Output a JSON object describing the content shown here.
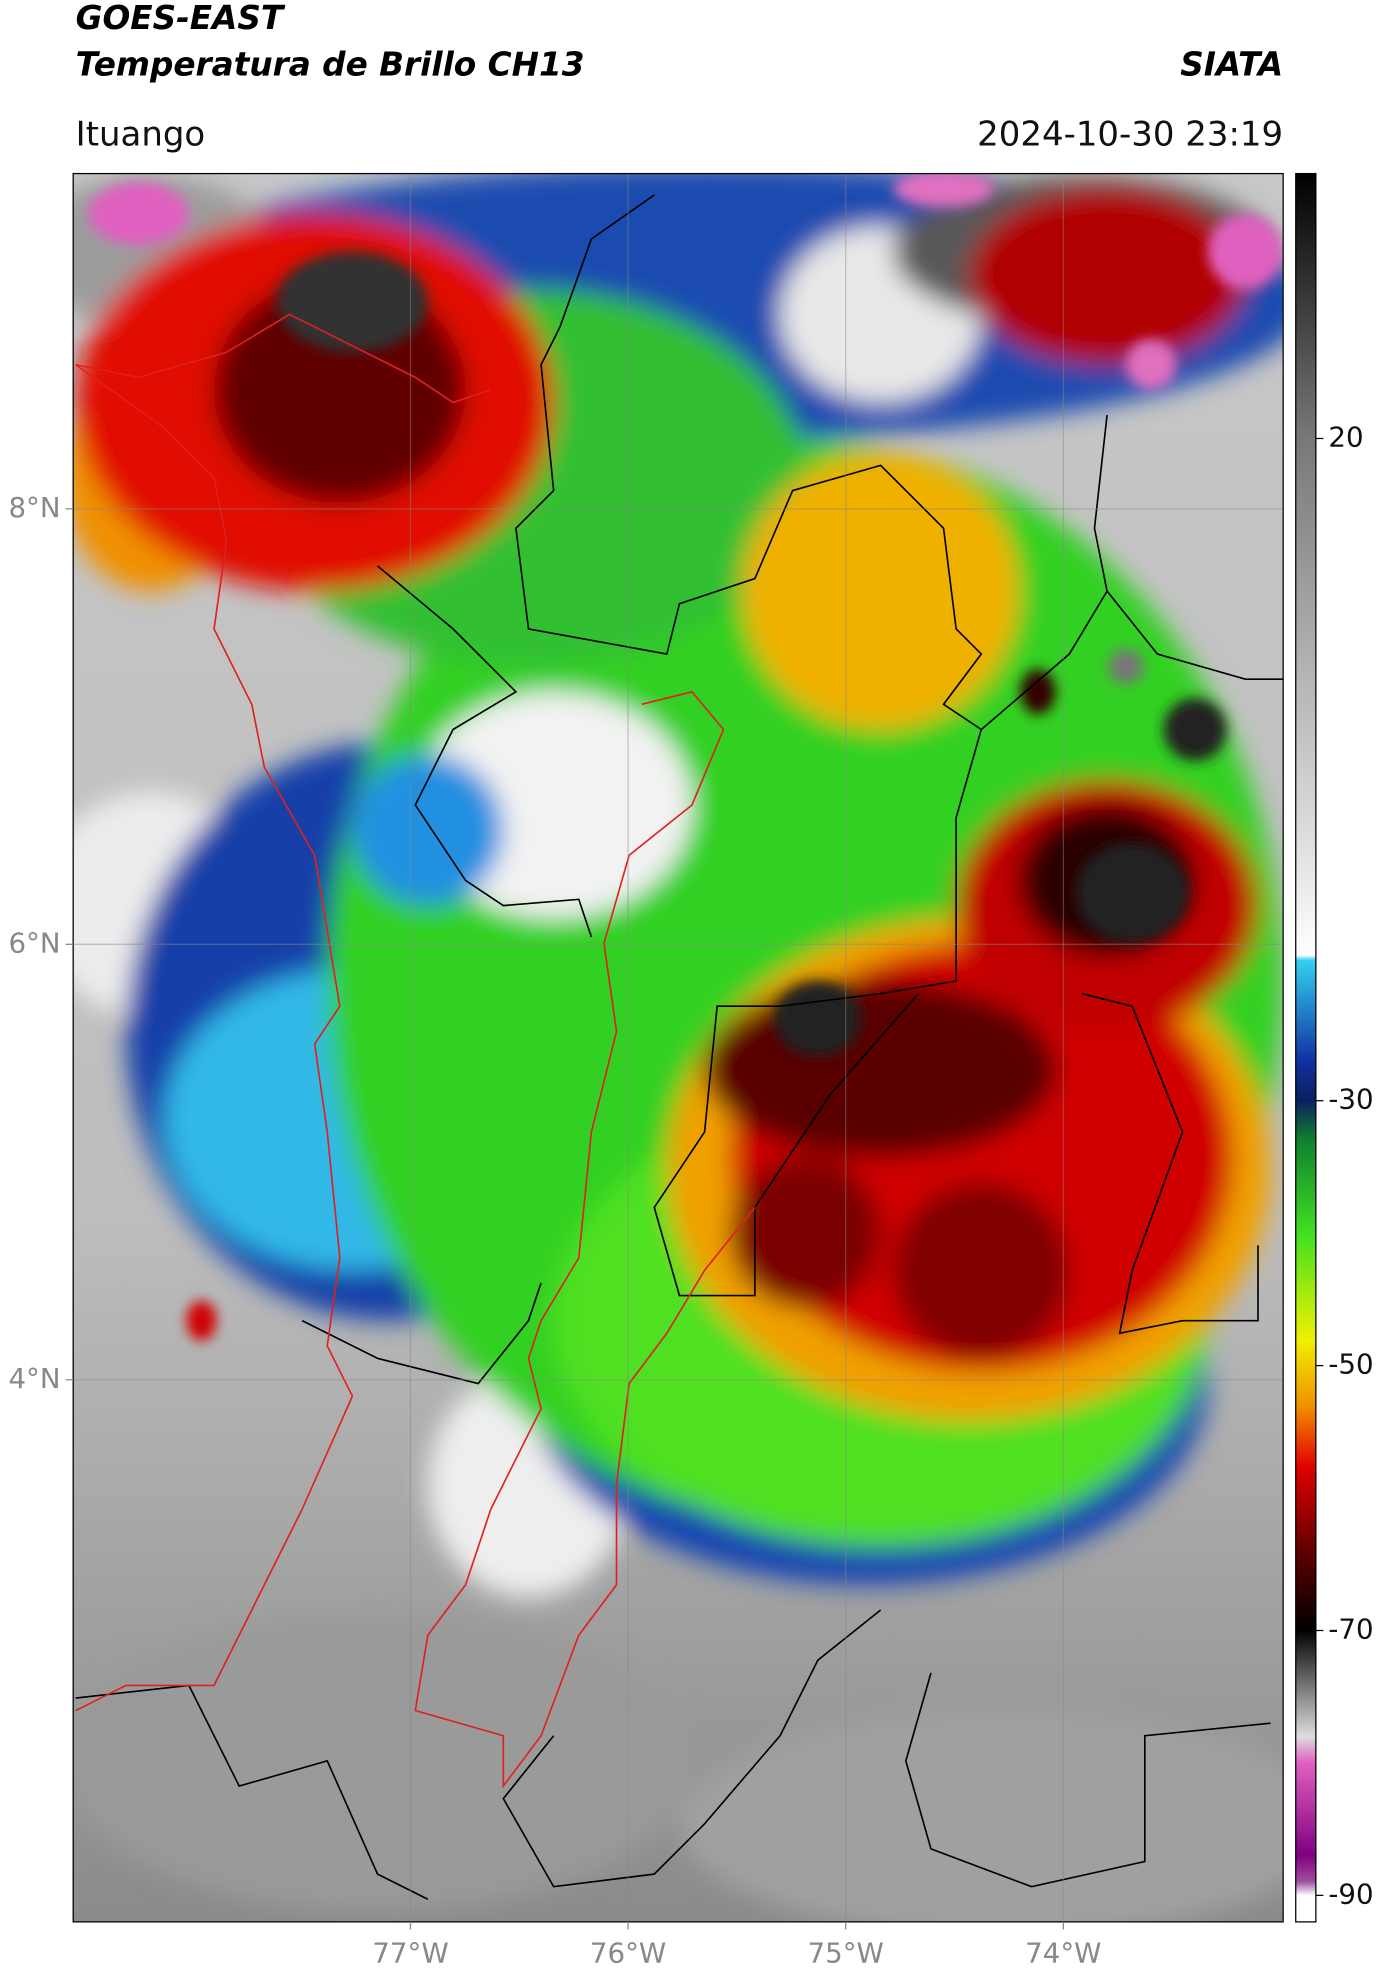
{
  "header": {
    "title": "GOES-EAST",
    "subtitle": "Temperatura de Brillo CH13",
    "agency": "SIATA",
    "location": "Ituango",
    "timestamp": "2024-10-30 23:19"
  },
  "map": {
    "xlim": [
      -78.55,
      -72.99
    ],
    "ylim": [
      1.51,
      9.54
    ],
    "xticks": [
      {
        "value": -77,
        "label": "77°W"
      },
      {
        "value": -76,
        "label": "76°W"
      },
      {
        "value": -75,
        "label": "75°W"
      },
      {
        "value": -74,
        "label": "74°W"
      }
    ],
    "yticks": [
      {
        "value": 8,
        "label": "8°N"
      },
      {
        "value": 6,
        "label": "6°N"
      },
      {
        "value": 4,
        "label": "4°N"
      }
    ],
    "grid": true
  },
  "colorbar": {
    "lim": [
      -92,
      40
    ],
    "ticks": [
      20,
      -30,
      -50,
      -70,
      -90
    ]
  }
}
